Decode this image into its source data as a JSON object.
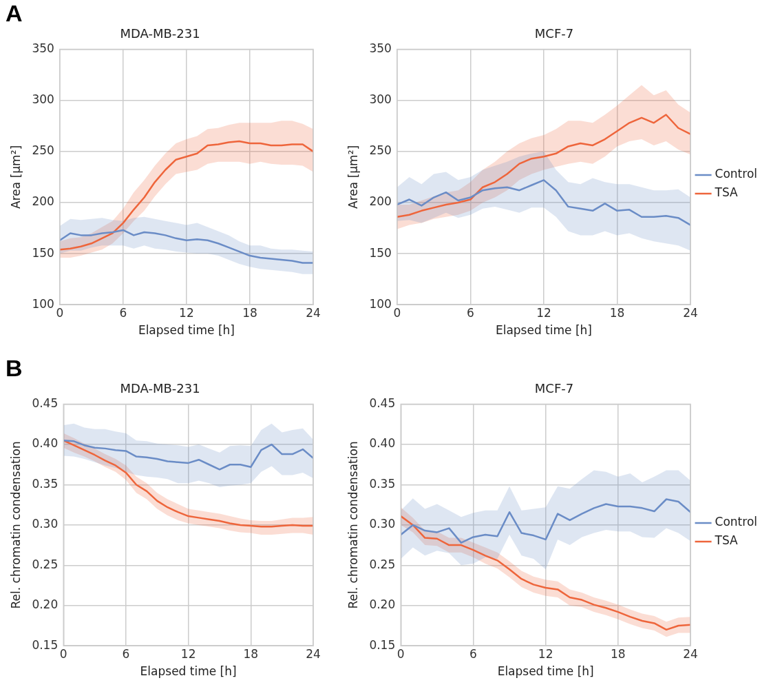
{
  "chart_data": [
    {
      "type": "line",
      "title": "MDA-MB-231",
      "xlabel": "Elapsed time [h]",
      "ylabel": "Area [µm²]",
      "annotations": [
        "A"
      ],
      "xlim": [
        0,
        24
      ],
      "xticks": [
        0,
        6,
        12,
        18,
        24
      ],
      "ylim": [
        100,
        350
      ],
      "yticks": [
        100,
        150,
        200,
        250,
        300,
        350
      ],
      "grid": true,
      "legend": false,
      "x": [
        0,
        1,
        2,
        3,
        4,
        5,
        6,
        7,
        8,
        9,
        10,
        11,
        12,
        13,
        14,
        15,
        16,
        17,
        18,
        19,
        20,
        21,
        22,
        23,
        24
      ],
      "series": [
        {
          "color": "#6a8cc6",
          "values": [
            163,
            170,
            168,
            168,
            170,
            171,
            173,
            168,
            171,
            170,
            168,
            165,
            163,
            164,
            163,
            160,
            156,
            152,
            148,
            146,
            145,
            144,
            143,
            141,
            141
          ],
          "upper": [
            177,
            184,
            183,
            184,
            185,
            183,
            182,
            185,
            186,
            184,
            182,
            180,
            178,
            180,
            176,
            172,
            168,
            162,
            158,
            158,
            155,
            154,
            154,
            153,
            152
          ],
          "lower": [
            150,
            153,
            153,
            156,
            158,
            158,
            158,
            155,
            158,
            155,
            154,
            152,
            151,
            150,
            150,
            148,
            144,
            140,
            137,
            135,
            134,
            133,
            132,
            130,
            130
          ]
        },
        {
          "color": "#ee653b",
          "values": [
            154,
            155,
            157,
            160,
            165,
            170,
            180,
            193,
            205,
            220,
            232,
            242,
            245,
            248,
            256,
            257,
            259,
            260,
            258,
            258,
            256,
            256,
            257,
            257,
            250
          ],
          "upper": [
            162,
            165,
            166,
            170,
            176,
            182,
            194,
            210,
            222,
            236,
            248,
            258,
            262,
            265,
            272,
            273,
            276,
            278,
            278,
            278,
            278,
            280,
            280,
            277,
            272
          ],
          "lower": [
            146,
            146,
            148,
            151,
            154,
            160,
            170,
            182,
            192,
            206,
            218,
            228,
            230,
            232,
            238,
            240,
            240,
            240,
            238,
            240,
            238,
            237,
            237,
            236,
            230
          ]
        }
      ]
    },
    {
      "type": "line",
      "title": "MCF-7",
      "xlabel": "Elapsed time [h]",
      "ylabel": "Area [µm²]",
      "xlim": [
        0,
        24
      ],
      "xticks": [
        0,
        6,
        12,
        18,
        24
      ],
      "ylim": [
        100,
        350
      ],
      "yticks": [
        100,
        150,
        200,
        250,
        300,
        350
      ],
      "grid": true,
      "legend": "right",
      "x": [
        0,
        1,
        2,
        3,
        4,
        5,
        6,
        7,
        8,
        9,
        10,
        11,
        12,
        13,
        14,
        15,
        16,
        17,
        18,
        19,
        20,
        21,
        22,
        23,
        24
      ],
      "series": [
        {
          "name": "Control",
          "color": "#6a8cc6",
          "values": [
            198,
            203,
            197,
            205,
            210,
            202,
            205,
            212,
            214,
            215,
            212,
            217,
            222,
            212,
            196,
            194,
            192,
            199,
            192,
            193,
            186,
            186,
            187,
            185,
            178
          ],
          "upper": [
            215,
            225,
            218,
            228,
            230,
            222,
            225,
            232,
            236,
            240,
            245,
            248,
            250,
            232,
            220,
            218,
            224,
            220,
            218,
            218,
            215,
            212,
            212,
            213,
            205
          ],
          "lower": [
            182,
            183,
            180,
            185,
            190,
            185,
            188,
            194,
            196,
            193,
            190,
            195,
            195,
            186,
            172,
            168,
            168,
            172,
            168,
            170,
            165,
            162,
            160,
            158,
            153
          ]
        },
        {
          "name": "TSA",
          "color": "#ee653b",
          "values": [
            186,
            188,
            192,
            195,
            198,
            200,
            203,
            215,
            220,
            228,
            238,
            243,
            245,
            248,
            255,
            258,
            256,
            262,
            270,
            278,
            283,
            278,
            286,
            273,
            267
          ],
          "upper": [
            198,
            198,
            202,
            206,
            210,
            212,
            220,
            232,
            240,
            250,
            258,
            263,
            266,
            272,
            280,
            280,
            278,
            286,
            295,
            305,
            315,
            305,
            310,
            296,
            288
          ],
          "lower": [
            174,
            178,
            180,
            184,
            186,
            188,
            192,
            200,
            205,
            212,
            222,
            228,
            232,
            235,
            238,
            240,
            238,
            245,
            255,
            260,
            262,
            256,
            260,
            252,
            247
          ]
        }
      ]
    },
    {
      "type": "line",
      "title": "MDA-MB-231",
      "xlabel": "Elapsed time [h]",
      "ylabel": "Rel. chromatin condensation",
      "annotations": [
        "B"
      ],
      "xlim": [
        0,
        24
      ],
      "xticks": [
        0,
        6,
        12,
        18,
        24
      ],
      "ylim": [
        0.15,
        0.45
      ],
      "yticks": [
        {
          "value": 0.15,
          "label": "0.15"
        },
        {
          "value": 0.2,
          "label": "0.20"
        },
        {
          "value": 0.25,
          "label": "0.25"
        },
        {
          "value": 0.3,
          "label": "0.30"
        },
        {
          "value": 0.35,
          "label": "0.35"
        },
        {
          "value": 0.4,
          "label": "0.40"
        },
        {
          "value": 0.45,
          "label": "0.45"
        }
      ],
      "grid": true,
      "legend": false,
      "x": [
        0,
        1,
        2,
        3,
        4,
        5,
        6,
        7,
        8,
        9,
        10,
        11,
        12,
        13,
        14,
        15,
        16,
        17,
        18,
        19,
        20,
        21,
        22,
        23,
        24
      ],
      "series": [
        {
          "color": "#6a8cc6",
          "values": [
            0.405,
            0.404,
            0.399,
            0.396,
            0.395,
            0.393,
            0.392,
            0.385,
            0.384,
            0.382,
            0.379,
            0.378,
            0.377,
            0.381,
            0.375,
            0.369,
            0.375,
            0.375,
            0.372,
            0.393,
            0.4,
            0.388,
            0.388,
            0.394,
            0.383
          ],
          "upper": [
            0.424,
            0.426,
            0.421,
            0.419,
            0.419,
            0.416,
            0.414,
            0.405,
            0.404,
            0.401,
            0.4,
            0.399,
            0.397,
            0.4,
            0.395,
            0.39,
            0.398,
            0.399,
            0.398,
            0.418,
            0.426,
            0.415,
            0.418,
            0.42,
            0.406
          ],
          "lower": [
            0.386,
            0.385,
            0.382,
            0.378,
            0.374,
            0.371,
            0.366,
            0.362,
            0.36,
            0.359,
            0.357,
            0.352,
            0.352,
            0.355,
            0.352,
            0.347,
            0.349,
            0.35,
            0.352,
            0.366,
            0.373,
            0.362,
            0.362,
            0.365,
            0.358
          ]
        },
        {
          "color": "#ee653b",
          "values": [
            0.405,
            0.399,
            0.393,
            0.387,
            0.38,
            0.374,
            0.365,
            0.35,
            0.342,
            0.33,
            0.322,
            0.316,
            0.311,
            0.309,
            0.307,
            0.305,
            0.302,
            0.3,
            0.299,
            0.298,
            0.298,
            0.299,
            0.3,
            0.299,
            0.299
          ],
          "upper": [
            0.414,
            0.408,
            0.401,
            0.395,
            0.388,
            0.382,
            0.374,
            0.36,
            0.352,
            0.34,
            0.332,
            0.326,
            0.32,
            0.318,
            0.316,
            0.314,
            0.311,
            0.308,
            0.306,
            0.305,
            0.305,
            0.307,
            0.309,
            0.309,
            0.31
          ],
          "lower": [
            0.396,
            0.39,
            0.385,
            0.379,
            0.372,
            0.366,
            0.356,
            0.34,
            0.332,
            0.32,
            0.312,
            0.306,
            0.302,
            0.3,
            0.298,
            0.296,
            0.293,
            0.291,
            0.29,
            0.288,
            0.288,
            0.289,
            0.29,
            0.29,
            0.288
          ]
        }
      ]
    },
    {
      "type": "line",
      "title": "MCF-7",
      "xlabel": "Elapsed time [h]",
      "ylabel": "Rel. chromatin condensation",
      "xlim": [
        0,
        24
      ],
      "xticks": [
        0,
        6,
        12,
        18,
        24
      ],
      "ylim": [
        0.15,
        0.45
      ],
      "yticks": [
        {
          "value": 0.15,
          "label": "0.15"
        },
        {
          "value": 0.2,
          "label": "0.20"
        },
        {
          "value": 0.25,
          "label": "0.25"
        },
        {
          "value": 0.3,
          "label": "0.30"
        },
        {
          "value": 0.35,
          "label": "0.35"
        },
        {
          "value": 0.4,
          "label": "0.40"
        },
        {
          "value": 0.45,
          "label": "0.45"
        }
      ],
      "grid": true,
      "legend": "right",
      "x": [
        0,
        1,
        2,
        3,
        4,
        5,
        6,
        7,
        8,
        9,
        10,
        11,
        12,
        13,
        14,
        15,
        16,
        17,
        18,
        19,
        20,
        21,
        22,
        23,
        24
      ],
      "series": [
        {
          "name": "Control",
          "color": "#6a8cc6",
          "values": [
            0.288,
            0.3,
            0.293,
            0.291,
            0.296,
            0.278,
            0.285,
            0.288,
            0.286,
            0.316,
            0.29,
            0.287,
            0.282,
            0.314,
            0.306,
            0.314,
            0.321,
            0.326,
            0.323,
            0.323,
            0.321,
            0.317,
            0.332,
            0.329,
            0.316
          ],
          "upper": [
            0.318,
            0.333,
            0.32,
            0.326,
            0.318,
            0.31,
            0.315,
            0.318,
            0.318,
            0.348,
            0.318,
            0.32,
            0.322,
            0.348,
            0.345,
            0.357,
            0.368,
            0.366,
            0.36,
            0.364,
            0.353,
            0.36,
            0.368,
            0.368,
            0.355
          ],
          "lower": [
            0.258,
            0.272,
            0.262,
            0.268,
            0.265,
            0.25,
            0.252,
            0.26,
            0.258,
            0.288,
            0.262,
            0.258,
            0.245,
            0.282,
            0.275,
            0.285,
            0.29,
            0.294,
            0.292,
            0.292,
            0.285,
            0.284,
            0.296,
            0.29,
            0.28
          ]
        },
        {
          "name": "TSA",
          "color": "#ee653b",
          "values": [
            0.311,
            0.3,
            0.284,
            0.283,
            0.275,
            0.275,
            0.269,
            0.262,
            0.256,
            0.245,
            0.233,
            0.226,
            0.222,
            0.22,
            0.21,
            0.207,
            0.201,
            0.197,
            0.192,
            0.186,
            0.181,
            0.178,
            0.17,
            0.175,
            0.176
          ],
          "upper": [
            0.322,
            0.309,
            0.293,
            0.292,
            0.284,
            0.284,
            0.278,
            0.272,
            0.266,
            0.255,
            0.243,
            0.236,
            0.232,
            0.23,
            0.22,
            0.216,
            0.21,
            0.206,
            0.201,
            0.195,
            0.19,
            0.187,
            0.18,
            0.185,
            0.186
          ],
          "lower": [
            0.3,
            0.291,
            0.275,
            0.274,
            0.266,
            0.266,
            0.26,
            0.252,
            0.246,
            0.235,
            0.223,
            0.216,
            0.212,
            0.21,
            0.2,
            0.198,
            0.192,
            0.188,
            0.183,
            0.177,
            0.172,
            0.169,
            0.161,
            0.166,
            0.166
          ]
        }
      ]
    }
  ]
}
